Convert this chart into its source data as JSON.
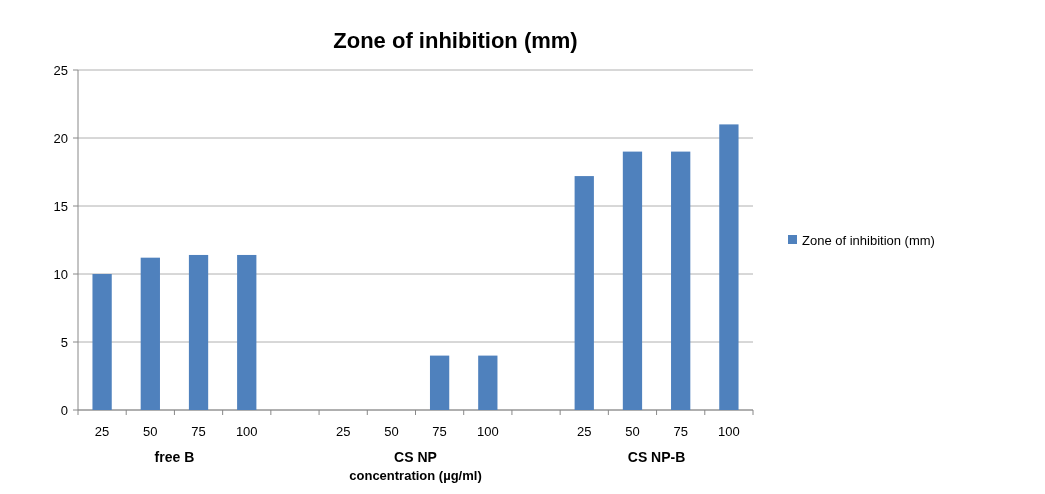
{
  "chart_data": {
    "type": "bar",
    "title": "Zone of inhibition (mm)",
    "xlabel": "concentration (µg/ml)",
    "categories": [
      "25",
      "50",
      "75",
      "100",
      null,
      "25",
      "50",
      "75",
      "100",
      null,
      "25",
      "50",
      "75",
      "100"
    ],
    "series": [
      {
        "name": "Zone of inhibition (mm)",
        "color": "#4f81bd",
        "values": [
          10,
          11.2,
          11.4,
          11.4,
          null,
          0,
          0,
          4,
          4,
          null,
          17.2,
          19,
          19,
          21
        ]
      }
    ],
    "annotations": [
      "free B",
      "CS NP",
      "CS NP-B"
    ],
    "ylim": [
      0,
      25
    ],
    "yticks": [
      0,
      5,
      10,
      15,
      20,
      25
    ],
    "grid": "y",
    "legend": "right"
  }
}
